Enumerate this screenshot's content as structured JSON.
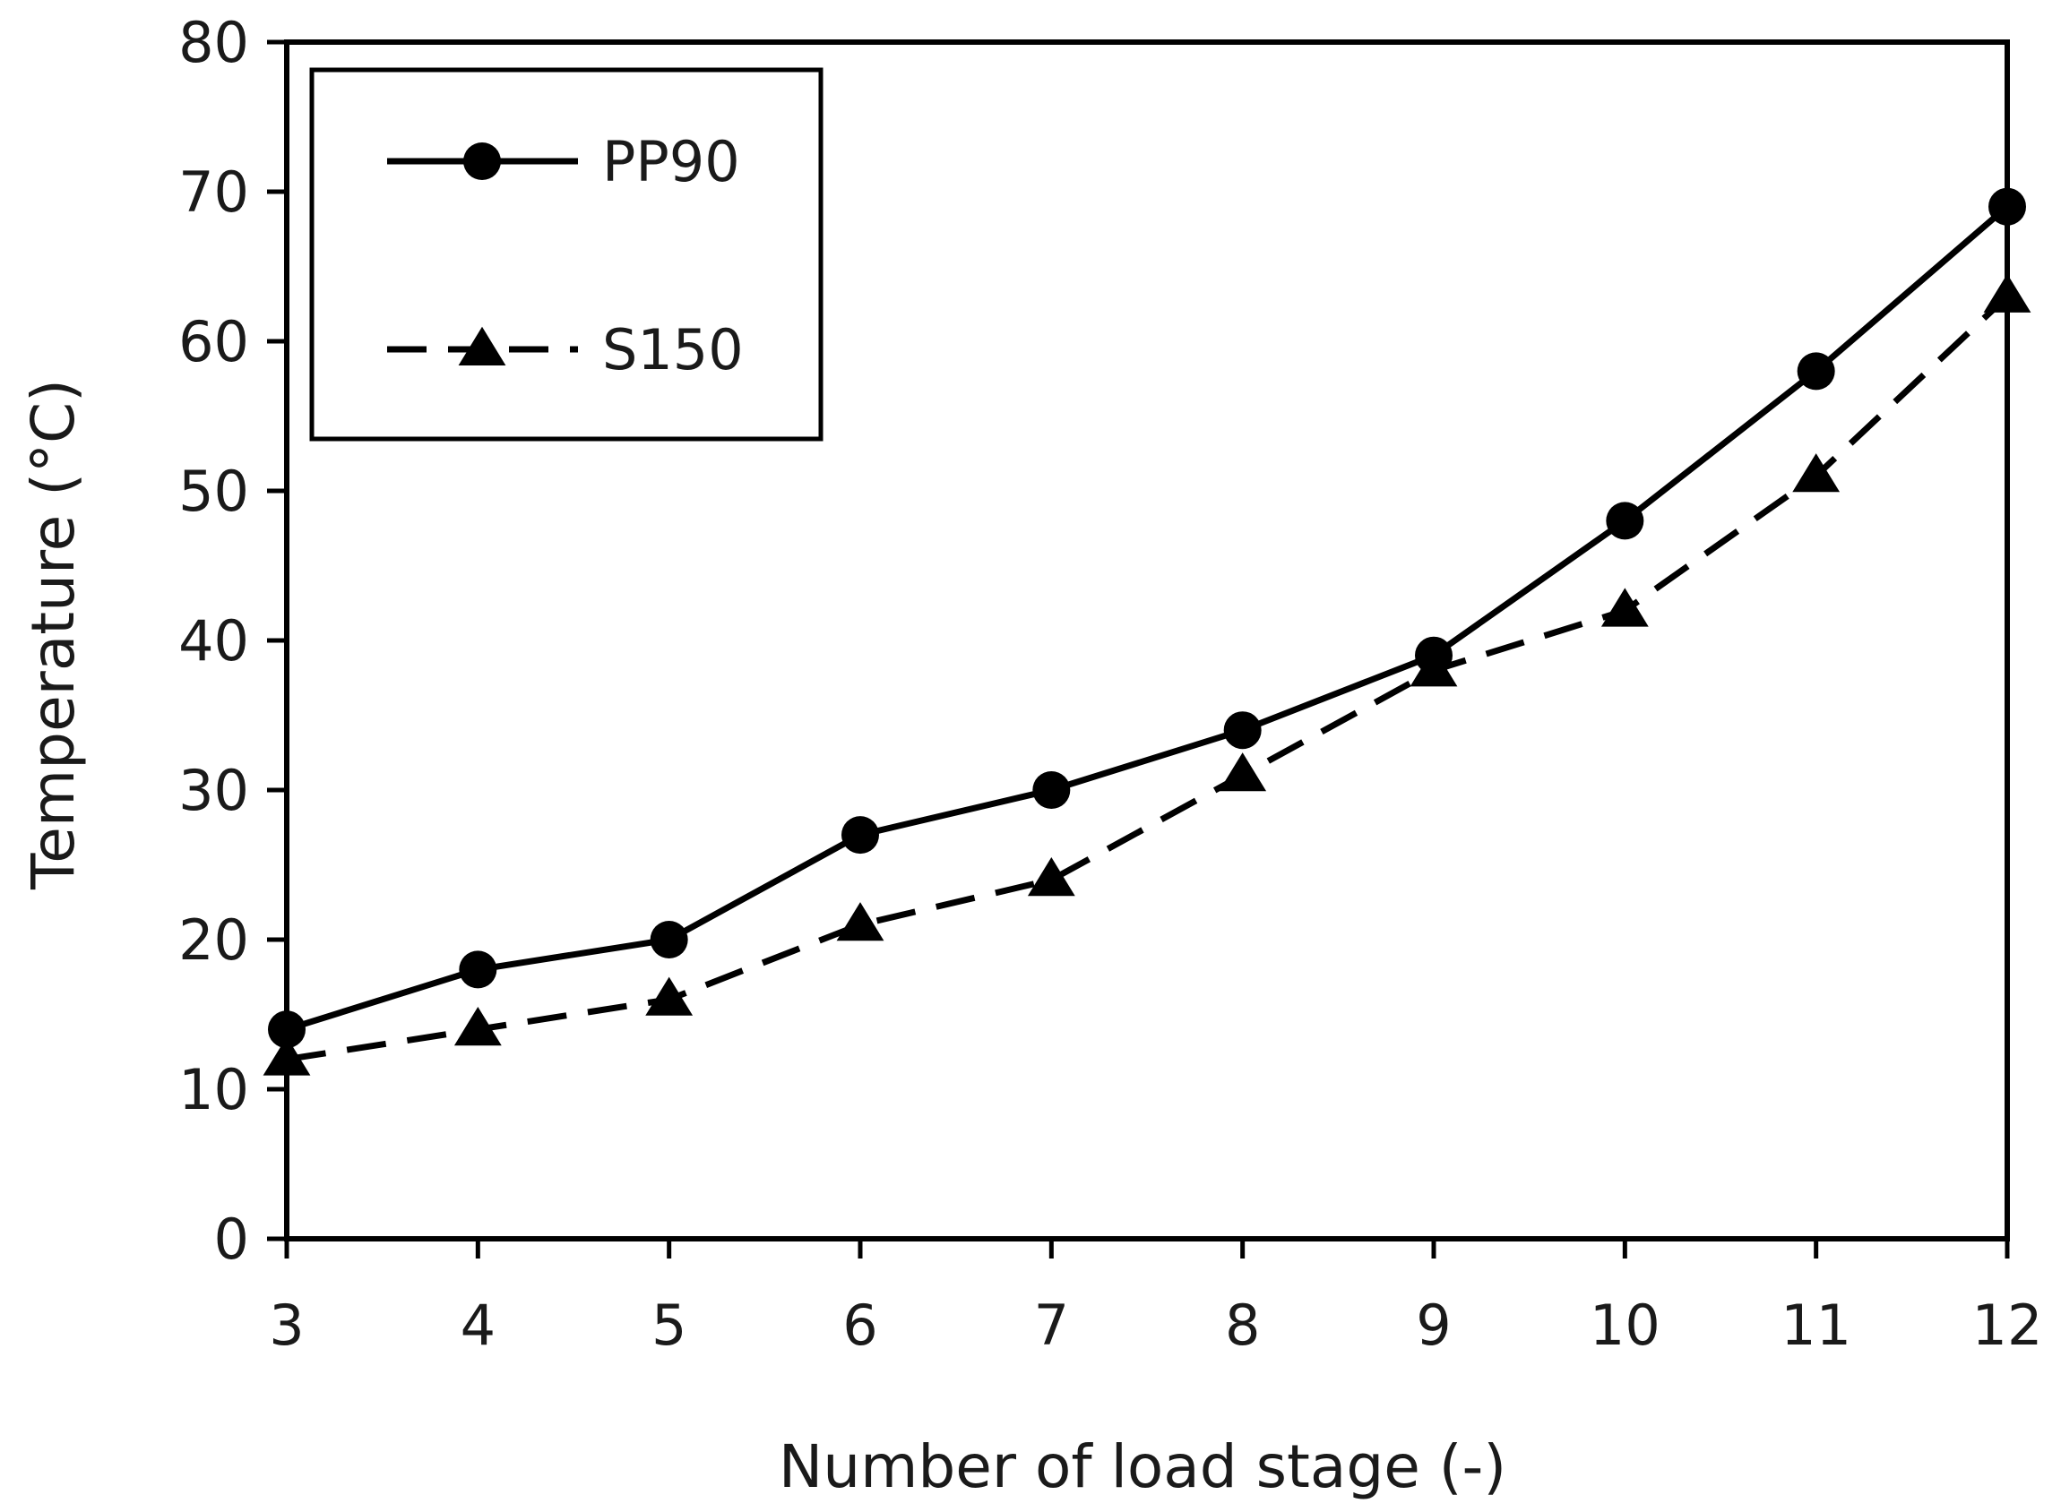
{
  "chart_data": {
    "type": "line",
    "title": "",
    "xlabel": "Number of load stage (-)",
    "ylabel": "Temperature (°C)",
    "x": [
      3,
      4,
      5,
      6,
      7,
      8,
      9,
      10,
      11,
      12
    ],
    "xlim": [
      3,
      12
    ],
    "ylim": [
      0,
      80
    ],
    "yticks": [
      0,
      10,
      20,
      30,
      40,
      50,
      60,
      70,
      80
    ],
    "xticks": [
      3,
      4,
      5,
      6,
      7,
      8,
      9,
      10,
      11,
      12
    ],
    "grid": false,
    "legend_position": "top-left",
    "series": [
      {
        "name": "PP90",
        "line_style": "solid",
        "marker": "circle",
        "color": "#000000",
        "values": [
          14,
          18,
          20,
          27,
          30,
          34,
          39,
          48,
          58,
          69
        ]
      },
      {
        "name": "S150",
        "line_style": "dashed",
        "marker": "triangle",
        "color": "#000000",
        "values": [
          12,
          14,
          16,
          21,
          24,
          31,
          38,
          42,
          51,
          63
        ]
      }
    ]
  }
}
